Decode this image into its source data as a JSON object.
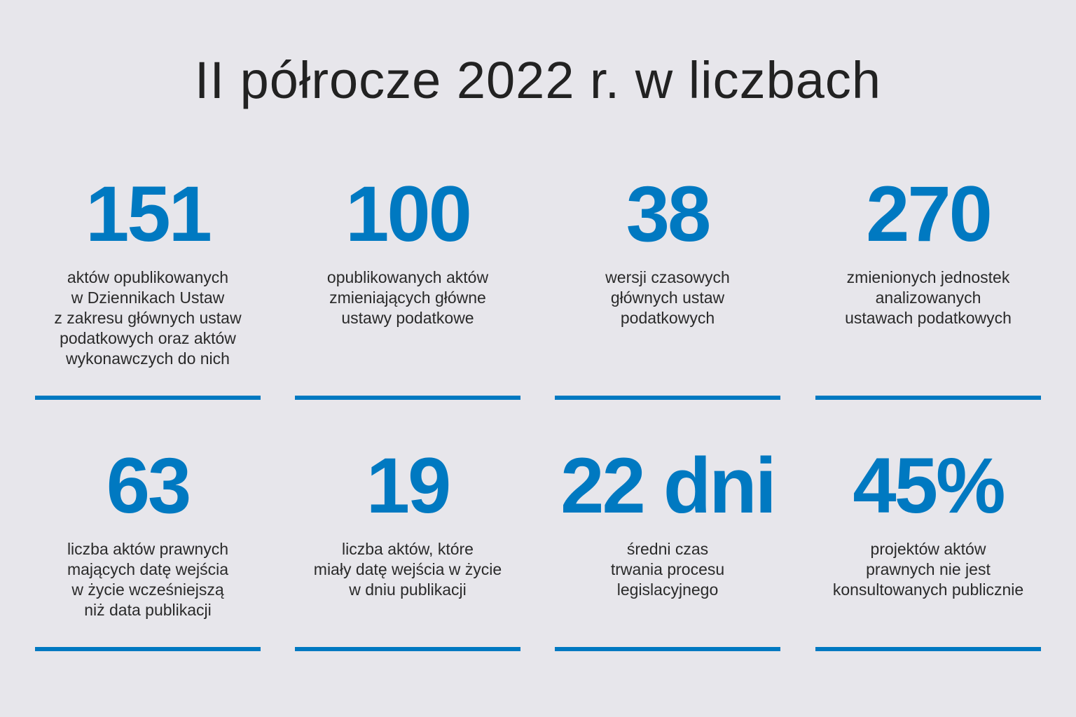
{
  "title": "II półrocze 2022 r. w liczbach",
  "accent_color": "#0079c1",
  "background_color": "#e7e6eb",
  "stats": [
    {
      "value": "151",
      "description": "aktów opublikowanych\nw Dziennikach Ustaw\nz zakresu głównych ustaw\npodatkowych oraz aktów\nwykonawczych do nich"
    },
    {
      "value": "100",
      "description": "opublikowanych aktów\nzmieniających główne\nustawy podatkowe"
    },
    {
      "value": "38",
      "description": "wersji czasowych\ngłównych ustaw\npodatkowych"
    },
    {
      "value": "270",
      "description": "zmienionych jednostek\nanalizowanych\nustawach podatkowych"
    },
    {
      "value": "63",
      "description": "liczba aktów prawnych\nmających datę wejścia\nw życie wcześniejszą\nniż data publikacji"
    },
    {
      "value": "19",
      "description": "liczba aktów, które\nmiały datę wejścia w życie\nw dniu publikacji"
    },
    {
      "value": "22 dni",
      "description": "średni czas\ntrwania procesu\nlegislacyjnego"
    },
    {
      "value": "45%",
      "description": "projektów aktów\nprawnych nie jest\nkonsultowanych publicznie"
    }
  ]
}
